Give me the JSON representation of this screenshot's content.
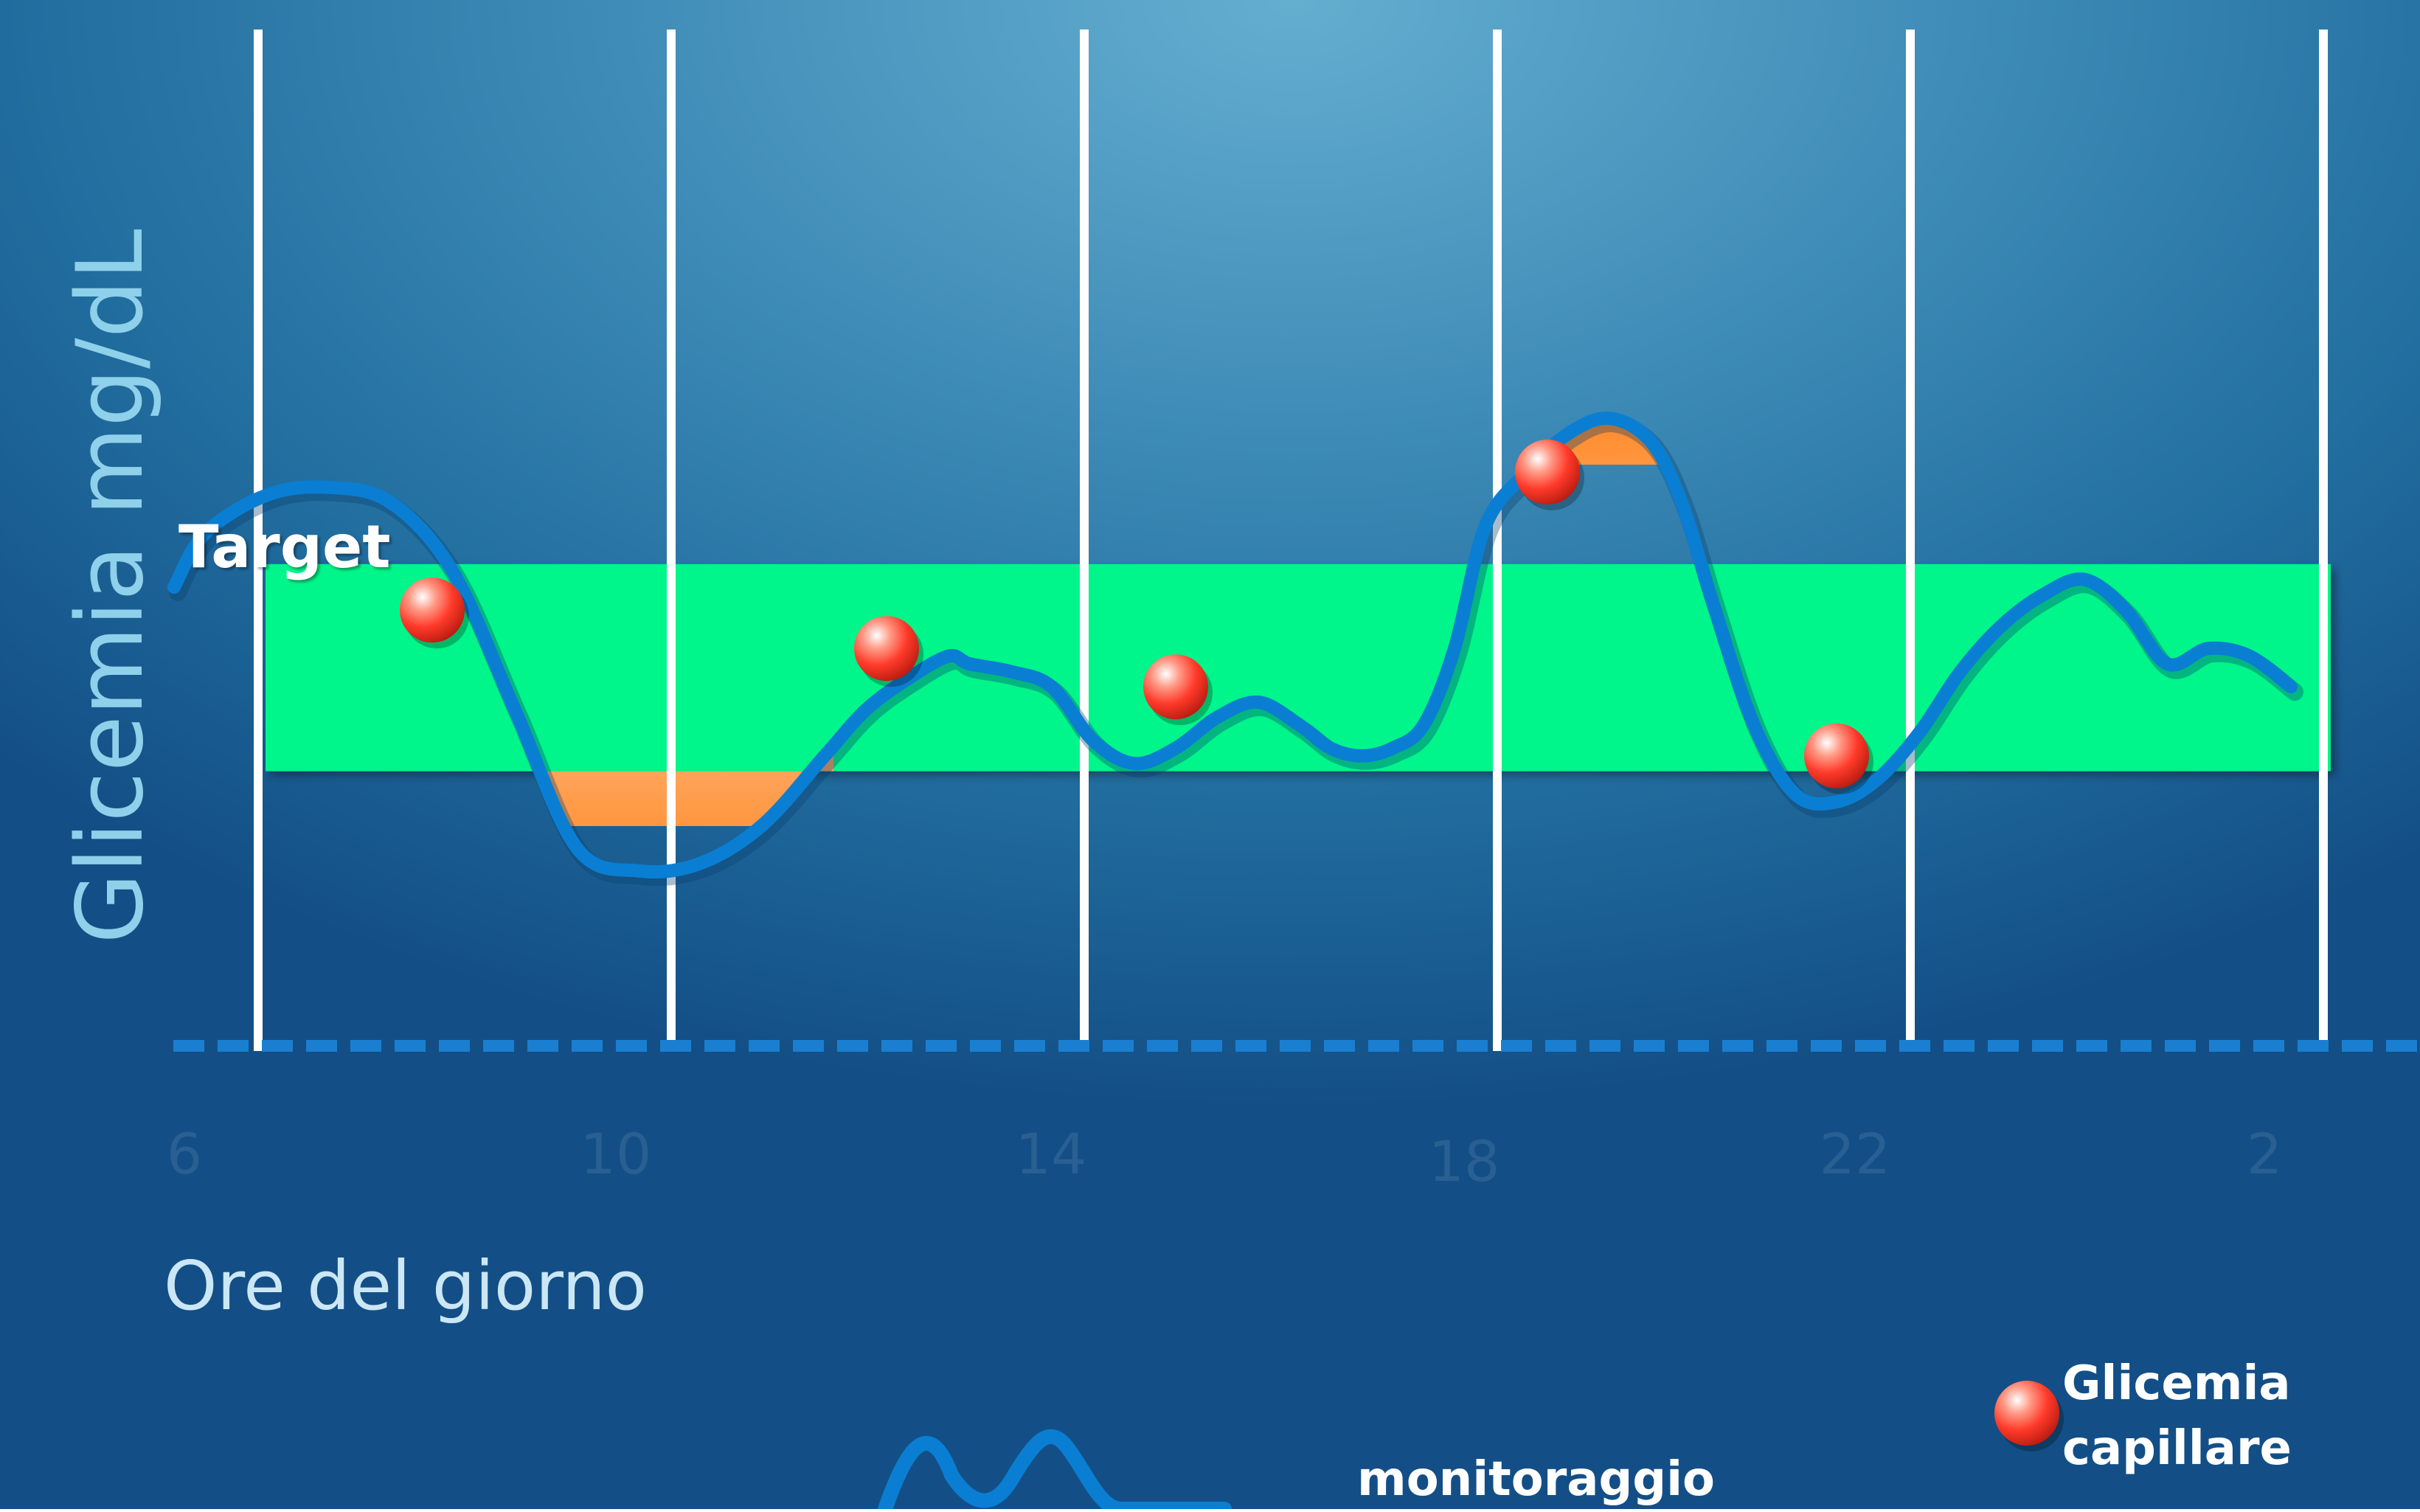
{
  "colors": {
    "background": "#2a75a8",
    "target_band": "#00f58a",
    "curve": "#0a7ed2",
    "gridline": "#ffffff",
    "baseline": "#1a7fd0",
    "excursion_fill": "#ff8a2a",
    "capillary_dot": "#ff3a2a",
    "tick_text": "#2a5f92",
    "axis_title": "#8fd0ea"
  },
  "chart_data": {
    "type": "line",
    "ylabel": "Glicemia mg/dL",
    "xlabel": "Ore del giorno",
    "x_ticks": [
      "6",
      "10",
      "14",
      "18",
      "22",
      "2"
    ],
    "target_label": "Target",
    "target_range_relative": [
      0.36,
      0.63
    ],
    "legend": [
      {
        "name": "Glicemia capillare",
        "lines": [
          "Glicemia",
          "capillare"
        ],
        "marker": "red-dot-icon"
      },
      {
        "name": "monitoraggio",
        "lines": [
          "monitoraggio"
        ],
        "marker": "blue-wave-icon"
      }
    ],
    "cgm_series": {
      "name": "monitoraggio",
      "x_hours": [
        5.9,
        6.2,
        6.8,
        7.4,
        8.0,
        8.6,
        9.2,
        9.8,
        10.4,
        11.0,
        11.6,
        12.2,
        12.6,
        13.0,
        13.4,
        13.6,
        14.0,
        14.4,
        14.8,
        15.2,
        15.6,
        16.0,
        16.4,
        16.8,
        17.1,
        17.4,
        17.7,
        18.0,
        18.3,
        18.6,
        19.0,
        19.4,
        19.8,
        20.2,
        20.5,
        20.8,
        21.2,
        21.6,
        22.0,
        22.4,
        22.8,
        23.2,
        23.6,
        24.0,
        24.4,
        24.8,
        25.2,
        25.6,
        26.0,
        26.4
      ],
      "y_relative": [
        0.6,
        0.67,
        0.72,
        0.73,
        0.71,
        0.62,
        0.44,
        0.26,
        0.23,
        0.24,
        0.29,
        0.38,
        0.44,
        0.48,
        0.51,
        0.5,
        0.49,
        0.47,
        0.4,
        0.37,
        0.39,
        0.43,
        0.45,
        0.42,
        0.39,
        0.38,
        0.39,
        0.42,
        0.52,
        0.68,
        0.75,
        0.8,
        0.82,
        0.79,
        0.71,
        0.58,
        0.42,
        0.33,
        0.32,
        0.35,
        0.41,
        0.49,
        0.55,
        0.59,
        0.61,
        0.57,
        0.5,
        0.52,
        0.51,
        0.47
      ]
    },
    "capillary_points": {
      "name": "Glicemia capillare",
      "x_hours": [
        8.4,
        12.8,
        15.6,
        19.2,
        22.0
      ],
      "y_relative": [
        0.57,
        0.52,
        0.47,
        0.75,
        0.38
      ]
    }
  }
}
